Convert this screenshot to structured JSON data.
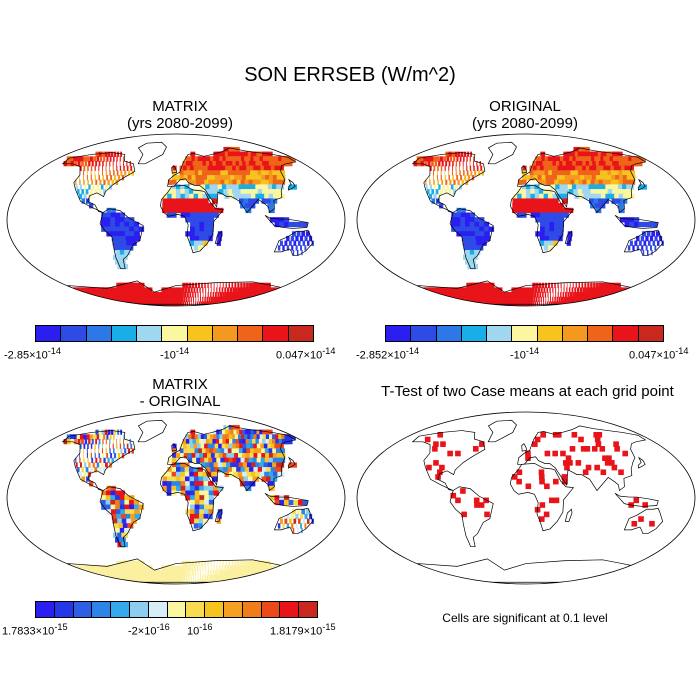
{
  "main_title": "SON ERRSEB (W/m^2)",
  "panels": {
    "matrix": {
      "title_line1": "MATRIX",
      "title_line2": "(yrs 2080-2099)"
    },
    "original": {
      "title_line1": "ORIGINAL",
      "title_line2": "(yrs 2080-2099)"
    },
    "diff": {
      "title_line1": "MATRIX",
      "title_line2": "- ORIGINAL"
    },
    "ttest": {
      "title": "T-Test of two Case means at each grid point",
      "note": "Cells are significant at 0.1 level"
    }
  },
  "colorbars": {
    "matrix": {
      "colors": [
        "#2a1ef0",
        "#2f4be6",
        "#2c78e6",
        "#1aaee8",
        "#9fd6f0",
        "#fbf6a0",
        "#f7c31e",
        "#f59820",
        "#f0641a",
        "#e8141a",
        "#c8281e"
      ],
      "labels": {
        "left": "-2.85×10",
        "left_exp": "-14",
        "mid": "-10",
        "mid_exp": "-14",
        "right": "0.047×10",
        "right_exp": "-14"
      }
    },
    "original": {
      "colors": [
        "#2a1ef0",
        "#2f4be6",
        "#2c78e6",
        "#1aaee8",
        "#9fd6f0",
        "#fbf6a0",
        "#f7c31e",
        "#f59820",
        "#f0641a",
        "#e8141a",
        "#c8281e"
      ],
      "labels": {
        "left": "-2.852×10",
        "left_exp": "-14",
        "mid": "-10",
        "mid_exp": "-14",
        "right": "0.047×10",
        "right_exp": "-14"
      }
    },
    "diff": {
      "colors": [
        "#2a1ef0",
        "#2436e8",
        "#2c5ee6",
        "#2c84e6",
        "#34a8ec",
        "#8ccdf0",
        "#d6eef8",
        "#fbf6a0",
        "#f7dc50",
        "#f7c31e",
        "#f5a020",
        "#f07c1a",
        "#ec4818",
        "#e8141a",
        "#c8281e"
      ],
      "labels": {
        "left": "1.7833×10",
        "left_exp": "-15",
        "mid1": "-2×10",
        "mid1_exp": "-16",
        "mid2": "10",
        "mid2_exp": "-16",
        "right": "1.8179×10",
        "right_exp": "-15"
      }
    }
  },
  "colors": {
    "land_outline": "#000000",
    "significant": "#e8141a",
    "antarctica_diff": "#fbf0a0"
  }
}
